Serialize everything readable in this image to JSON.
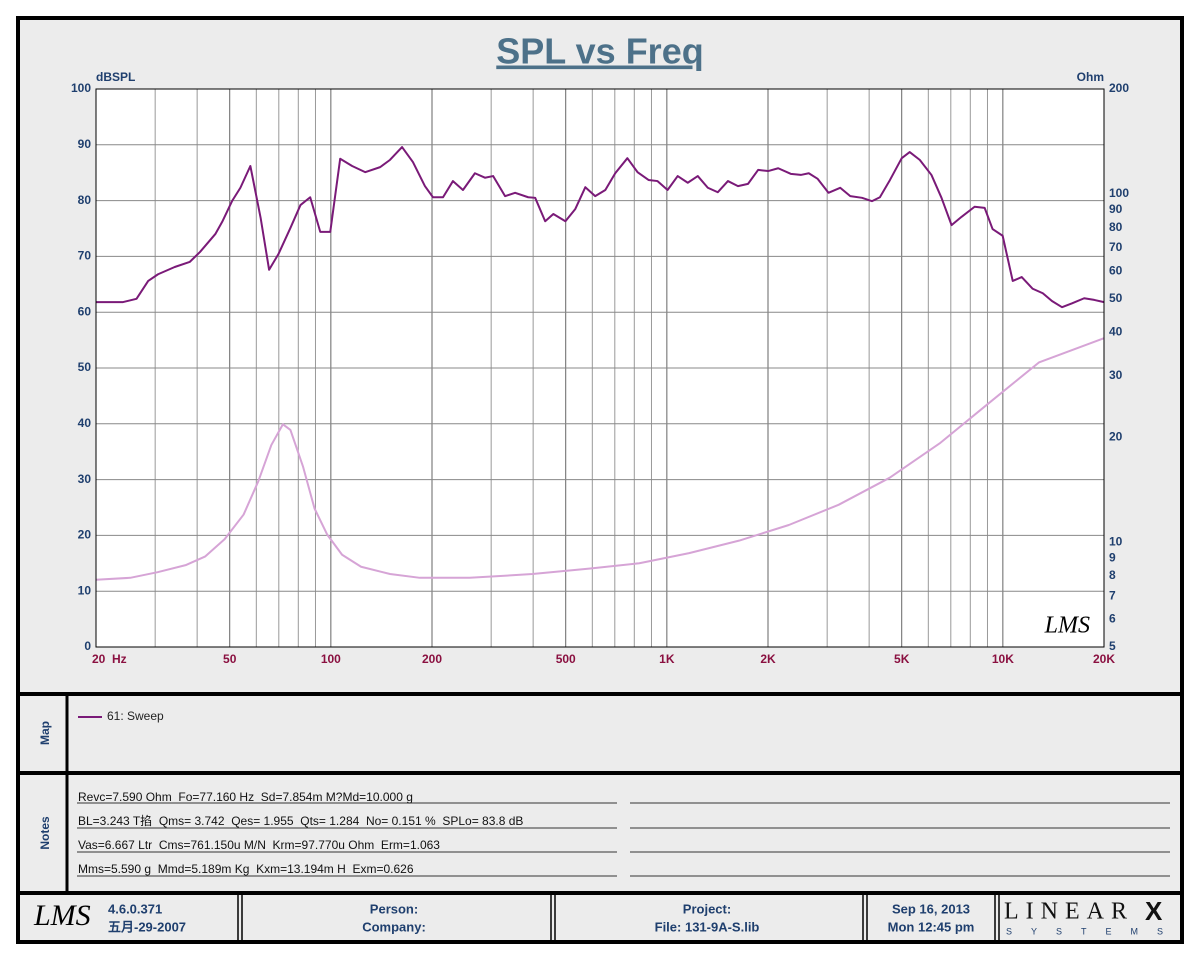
{
  "chart_data": {
    "type": "line",
    "title": "SPL vs Freq",
    "ylabel": "dBSPL",
    "y2label": "Ohm",
    "xlog": true,
    "y2log": true,
    "grid": true,
    "xlim": [
      20,
      20000
    ],
    "ylim": [
      0,
      100
    ],
    "y2lim": [
      5,
      200
    ],
    "xticks": [
      {
        "value": 20,
        "label": "20  Hz"
      },
      50,
      100,
      200,
      500,
      {
        "value": 1000,
        "label": "1K"
      },
      {
        "value": 2000,
        "label": "2K"
      },
      {
        "value": 5000,
        "label": "5K"
      },
      {
        "value": 10000,
        "label": "10K"
      },
      {
        "value": 20000,
        "label": "20K"
      }
    ],
    "xgrid": [
      30,
      40,
      60,
      70,
      80,
      90,
      300,
      400,
      600,
      700,
      800,
      900,
      3000,
      4000,
      6000,
      7000,
      8000,
      9000
    ],
    "yticks": [
      0,
      10,
      20,
      30,
      40,
      50,
      60,
      70,
      80,
      90,
      100
    ],
    "y2ticks": [
      5,
      6,
      7,
      8,
      9,
      10,
      20,
      30,
      40,
      50,
      60,
      70,
      80,
      90,
      100,
      200
    ],
    "watermark": "LMS",
    "series": [
      {
        "name": "61: Sweep",
        "color": "#7a1a78",
        "x": [
          20,
          24,
          26.4,
          28.6,
          30.6,
          34.3,
          38,
          40.8,
          45.3,
          47.5,
          50.9,
          53.8,
          57.6,
          61.8,
          65.5,
          69.8,
          75.8,
          81.2,
          86.8,
          93,
          99.6,
          106.6,
          115.7,
          126.5,
          140.2,
          150,
          162.9,
          175.5,
          190.5,
          201.3,
          215.7,
          230.9,
          247.3,
          268.4,
          287.5,
          304,
          330,
          353.5,
          386.7,
          405.6,
          434.4,
          459.4,
          499,
          534,
          572,
          612,
          656,
          702,
          763,
          818,
          882,
          938,
          1005,
          1077,
          1154,
          1236,
          1324,
          1418,
          1520,
          1628,
          1744,
          1869,
          2002,
          2145,
          2337,
          2504,
          2645,
          2811,
          3027,
          3280,
          3515,
          3809,
          4081,
          4306,
          4614,
          5000,
          5281,
          5658,
          6130,
          6567,
          7036,
          7538,
          8240,
          8827,
          9320,
          9986,
          10700,
          11380,
          12270,
          13150,
          14000,
          15000,
          16070,
          17460,
          18710,
          20000
        ],
        "values": [
          61.8,
          61.8,
          62.4,
          65.6,
          66.8,
          68.1,
          69,
          70.8,
          74,
          76.2,
          80,
          82.3,
          86.2,
          76.9,
          67.6,
          70.4,
          75.1,
          79.2,
          80.6,
          74.4,
          74.4,
          87.5,
          86.2,
          85.1,
          86,
          87.3,
          89.6,
          86.9,
          82.6,
          80.6,
          80.6,
          83.5,
          81.9,
          84.9,
          84.1,
          84.4,
          80.8,
          81.4,
          80.6,
          80.5,
          76.3,
          77.6,
          76.3,
          78.5,
          82.4,
          80.8,
          81.9,
          84.9,
          87.6,
          85.1,
          83.7,
          83.5,
          81.9,
          84.4,
          83.2,
          84.4,
          82.3,
          81.5,
          83.5,
          82.6,
          83,
          85.5,
          85.3,
          85.8,
          84.8,
          84.6,
          84.9,
          83.9,
          81.4,
          82.3,
          80.8,
          80.5,
          79.9,
          80.6,
          83.7,
          87.6,
          88.7,
          87.3,
          84.6,
          80.5,
          75.6,
          77.1,
          78.9,
          78.7,
          74.9,
          73.7,
          65.6,
          66.3,
          64.2,
          63.4,
          62,
          60.9,
          61.6,
          62.5,
          62.2,
          61.8
        ]
      },
      {
        "color": "#d6a4d6",
        "axis": "y2",
        "x": [
          20,
          25.3,
          30.5,
          37.1,
          42.3,
          48.3,
          55,
          60.9,
          66.5,
          72,
          75.8,
          82.6,
          89.4,
          97.6,
          108,
          123,
          150,
          184,
          259,
          398,
          592,
          828,
          1165,
          1640,
          2307,
          3244,
          4600,
          6480,
          9100,
          12800,
          20000
        ],
        "values": [
          7.8,
          7.9,
          8.2,
          8.6,
          9.1,
          10.2,
          12,
          15,
          19,
          21.8,
          21,
          16.5,
          12.5,
          10.5,
          9.2,
          8.5,
          8.1,
          7.9,
          7.9,
          8.1,
          8.4,
          8.7,
          9.3,
          10.1,
          11.2,
          12.8,
          15.3,
          19.2,
          25.1,
          32.8,
          38.5
        ]
      }
    ]
  },
  "map": {
    "label": "Map"
  },
  "notes": {
    "label": "Notes",
    "lines": [
      "Revc=7.590 Ohm  Fo=77.160 Hz  Sd=7.854m M?Md=10.000 g",
      "BL=3.243 T掐  Qms= 3.742  Qes= 1.955  Qts= 1.284  No= 0.151 %  SPLo= 83.8 dB",
      "Vas=6.667 Ltr  Cms=761.150u M/N  Krm=97.770u Ohm  Erm=1.063",
      "Mms=5.590 g  Mmd=5.189m Kg  Kxm=13.194m H  Exm=0.626"
    ]
  },
  "footer": {
    "logo": "LMS",
    "version": "4.6.0.371",
    "build_date": "五月-29-2007",
    "person": "Person:",
    "company": "Company:",
    "project": "Project:",
    "file": "File: 131-9A-S.lib",
    "date": "Sep 16, 2013",
    "time": "Mon 12:45 pm",
    "brand": "LINEAR",
    "brand_mark": "X",
    "brand_sub": "SYSTEMS"
  }
}
